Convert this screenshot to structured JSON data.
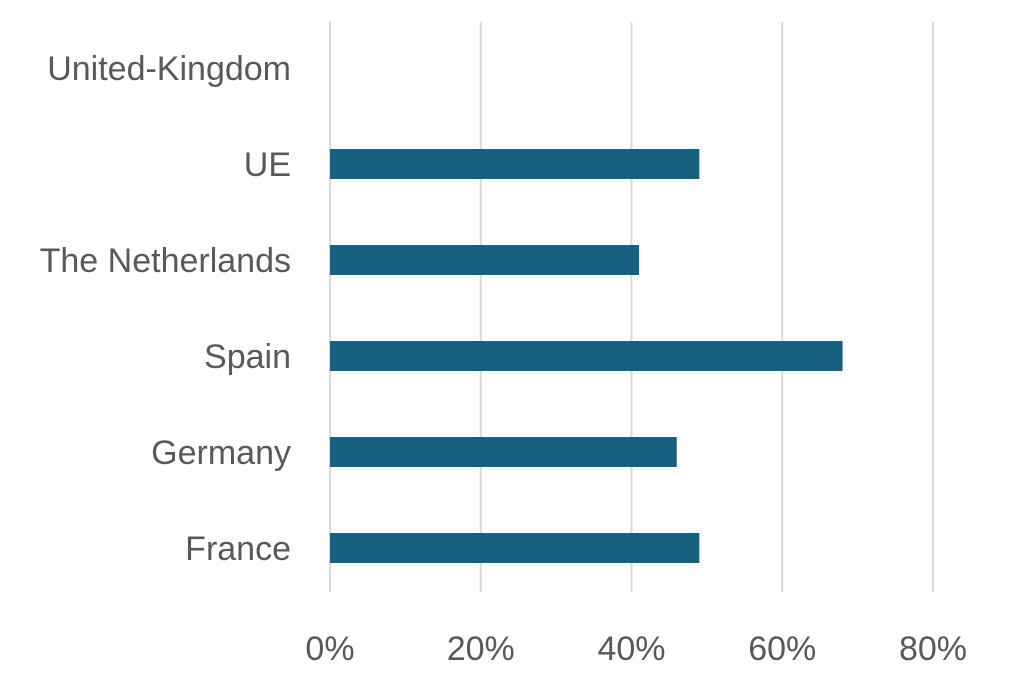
{
  "chart_data": {
    "type": "bar",
    "orientation": "horizontal",
    "categories": [
      "United-Kingdom",
      "UE",
      "The Netherlands",
      "Spain",
      "Germany",
      "France"
    ],
    "values": [
      0,
      49,
      41,
      68,
      46,
      49
    ],
    "value_format": "percent",
    "xlim": [
      0,
      80
    ],
    "x_ticks": [
      0,
      20,
      40,
      60,
      80
    ],
    "x_tick_labels": [
      "0%",
      "20%",
      "40%",
      "60%",
      "80%"
    ],
    "title": "",
    "xlabel": "",
    "ylabel": "",
    "grid": "vertical",
    "legend": "none",
    "bar_color": "#17607f",
    "grid_color": "#d9d9d9",
    "text_color": "#595959"
  }
}
